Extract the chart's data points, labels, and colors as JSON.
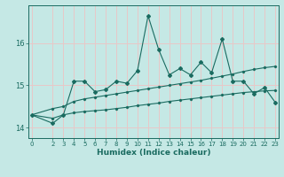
{
  "title": "",
  "xlabel": "Humidex (Indice chaleur)",
  "ylabel": "",
  "background_color": "#c5e8e5",
  "grid_color": "#e8c8c8",
  "line_color": "#1a6b60",
  "x_values": [
    0,
    2,
    3,
    4,
    5,
    6,
    7,
    8,
    9,
    10,
    11,
    12,
    13,
    14,
    15,
    16,
    17,
    18,
    19,
    20,
    21,
    22,
    23
  ],
  "y_jagged": [
    14.3,
    14.1,
    14.3,
    15.1,
    15.1,
    14.85,
    14.9,
    15.1,
    15.05,
    15.35,
    16.65,
    15.85,
    15.25,
    15.4,
    15.25,
    15.55,
    15.3,
    16.1,
    15.1,
    15.1,
    14.8,
    14.95,
    14.6
  ],
  "y_upper_trend": [
    14.3,
    14.45,
    14.5,
    14.62,
    14.68,
    14.72,
    14.76,
    14.8,
    14.84,
    14.88,
    14.92,
    14.96,
    15.0,
    15.04,
    15.08,
    15.12,
    15.17,
    15.22,
    15.27,
    15.33,
    15.38,
    15.42,
    15.45
  ],
  "y_lower_trend": [
    14.3,
    14.22,
    14.3,
    14.35,
    14.38,
    14.4,
    14.42,
    14.45,
    14.48,
    14.52,
    14.55,
    14.58,
    14.62,
    14.65,
    14.68,
    14.71,
    14.74,
    14.77,
    14.8,
    14.83,
    14.85,
    14.87,
    14.88
  ],
  "xlim": [
    -0.3,
    23.3
  ],
  "ylim": [
    13.75,
    16.9
  ],
  "yticks": [
    14,
    15,
    16
  ],
  "xtick_positions": [
    0,
    2,
    3,
    4,
    5,
    6,
    7,
    8,
    9,
    10,
    11,
    12,
    13,
    14,
    15,
    16,
    17,
    18,
    19,
    20,
    21,
    22,
    23
  ],
  "xtick_labels": [
    "0",
    "2",
    "3",
    "4",
    "5",
    "6",
    "7",
    "8",
    "9",
    "10",
    "11",
    "12",
    "13",
    "14",
    "15",
    "16",
    "17",
    "18",
    "19",
    "20",
    "21",
    "22",
    "23"
  ]
}
